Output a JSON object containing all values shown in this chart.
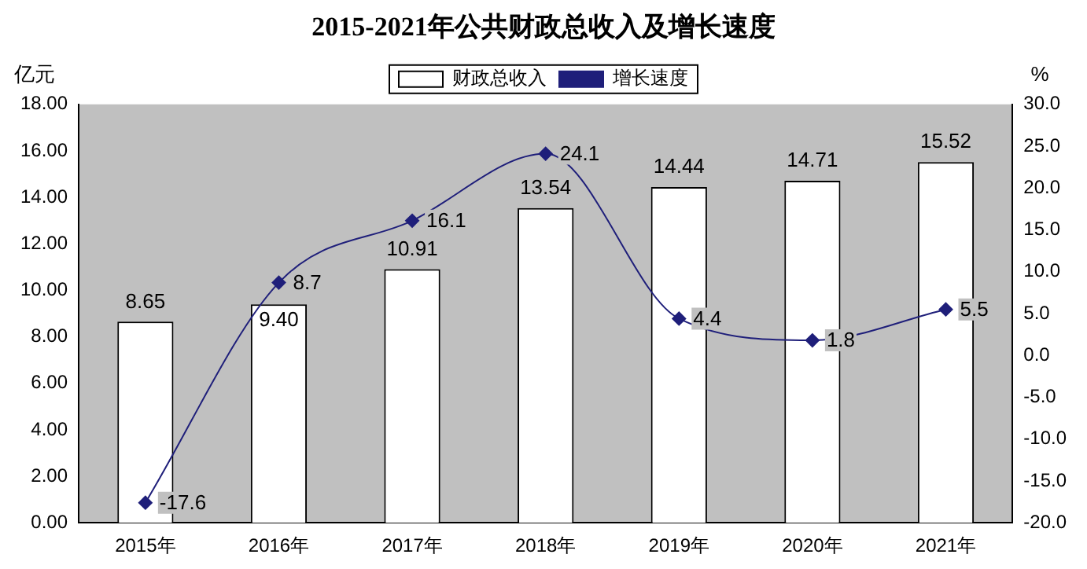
{
  "chart_data": {
    "type": "bar",
    "title": "2015-2021年公共财政总收入及增长速度",
    "categories": [
      "2015年",
      "2016年",
      "2017年",
      "2018年",
      "2019年",
      "2020年",
      "2021年"
    ],
    "series": [
      {
        "name": "财政总收入",
        "color": "#ffffff",
        "values": [
          8.65,
          9.4,
          10.91,
          13.54,
          14.44,
          14.71,
          15.52
        ],
        "value_labels": [
          "8.65",
          "9.40",
          "10.91",
          "13.54",
          "14.44",
          "14.71",
          "15.52"
        ]
      },
      {
        "name": "增长速度",
        "type": "line",
        "axis": "y2",
        "color": "#1f1f7a",
        "marker": "diamond",
        "values": [
          -17.6,
          8.7,
          16.1,
          24.1,
          4.4,
          1.8,
          5.5
        ],
        "value_labels": [
          "-17.6",
          "8.7",
          "16.1",
          "24.1",
          "4.4",
          "1.8",
          "5.5"
        ]
      }
    ],
    "ylabel": "亿元",
    "y2label": "%",
    "ylim": [
      0,
      18
    ],
    "yticks": [
      {
        "value": 0,
        "label": "0.00"
      },
      {
        "value": 2,
        "label": "2.00"
      },
      {
        "value": 4,
        "label": "4.00"
      },
      {
        "value": 6,
        "label": "6.00"
      },
      {
        "value": 8,
        "label": "8.00"
      },
      {
        "value": 10,
        "label": "10.00"
      },
      {
        "value": 12,
        "label": "12.00"
      },
      {
        "value": 14,
        "label": "14.00"
      },
      {
        "value": 16,
        "label": "16.00"
      },
      {
        "value": 18,
        "label": "18.00"
      }
    ],
    "y2lim": [
      -20,
      30
    ],
    "y2ticks": [
      {
        "value": -20,
        "label": "-20.0"
      },
      {
        "value": -15,
        "label": "-15.0"
      },
      {
        "value": -10,
        "label": "-10.0"
      },
      {
        "value": -5,
        "label": "-5.0"
      },
      {
        "value": 0,
        "label": "0.0"
      },
      {
        "value": 5,
        "label": "5.0"
      },
      {
        "value": 10,
        "label": "10.0"
      },
      {
        "value": 15,
        "label": "15.0"
      },
      {
        "value": 20,
        "label": "20.0"
      },
      {
        "value": 25,
        "label": "25.0"
      },
      {
        "value": 30,
        "label": "30.0"
      }
    ],
    "grid": false,
    "legend": "top"
  }
}
